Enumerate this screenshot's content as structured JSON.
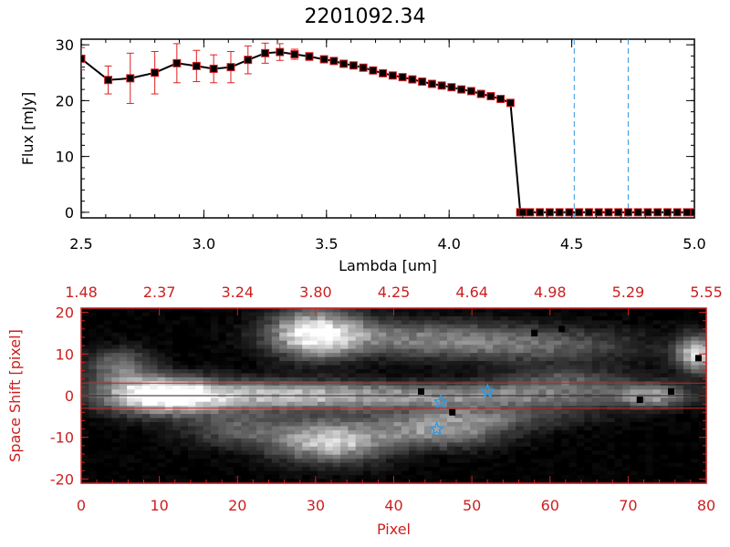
{
  "colors": {
    "axis_top": "#000000",
    "axis_bottom": "#cc2020",
    "marker": "#000000",
    "error_bar": "#dd2020",
    "line": "#000000",
    "vline": "#3399dd",
    "star": "#3399dd",
    "hline": "#cc2020"
  },
  "chart_data": [
    {
      "type": "line",
      "title": "2201092.34",
      "xlabel": "Lambda [um]",
      "ylabel": "Flux [mJy]",
      "xlim": [
        2.5,
        5.0
      ],
      "ylim": [
        -1,
        31
      ],
      "xticks": [
        2.5,
        3.0,
        3.5,
        4.0,
        4.5,
        5.0
      ],
      "xtick_labels": [
        "2.5",
        "3.0",
        "3.5",
        "4.0",
        "4.5",
        "5.0"
      ],
      "yticks": [
        0,
        10,
        20,
        30
      ],
      "ytick_labels": [
        "0",
        "10",
        "20",
        "30"
      ],
      "vertical_lines": [
        4.51,
        4.73
      ],
      "series": [
        {
          "x": [
            2.5,
            2.61,
            2.7,
            2.8,
            2.89,
            2.97,
            3.04,
            3.11,
            3.18,
            3.25,
            3.31,
            3.37,
            3.43,
            3.49,
            3.53,
            3.57,
            3.61,
            3.65,
            3.69,
            3.73,
            3.77,
            3.81,
            3.85,
            3.89,
            3.93,
            3.97,
            4.01,
            4.05,
            4.09,
            4.13,
            4.17,
            4.21,
            4.25,
            4.29,
            4.3,
            4.33,
            4.37,
            4.41,
            4.45,
            4.49,
            4.53,
            4.57,
            4.61,
            4.65,
            4.69,
            4.73,
            4.77,
            4.81,
            4.85,
            4.89,
            4.93,
            4.97,
            5.0
          ],
          "y": [
            27.5,
            23.7,
            24.0,
            25.0,
            26.7,
            26.2,
            25.7,
            26.0,
            27.3,
            28.5,
            28.7,
            28.3,
            27.9,
            27.4,
            27.1,
            26.6,
            26.3,
            25.9,
            25.4,
            24.9,
            24.5,
            24.2,
            23.8,
            23.4,
            23.0,
            22.7,
            22.4,
            22.0,
            21.7,
            21.2,
            20.8,
            20.3,
            19.6,
            0.0,
            0.0,
            0.0,
            0.0,
            0.0,
            0.0,
            0.0,
            0.0,
            0.0,
            0.0,
            0.0,
            0.0,
            0.0,
            0.0,
            0.0,
            0.0,
            0.0,
            0.0,
            0.0,
            0.0
          ],
          "err": [
            2.0,
            2.5,
            4.5,
            3.8,
            3.5,
            2.8,
            2.5,
            2.8,
            2.5,
            1.8,
            1.5,
            0.9,
            0.7,
            0.6,
            0.5,
            0.5,
            0.5,
            0.5,
            0.5,
            0.5,
            0.5,
            0.5,
            0.5,
            0.5,
            0.5,
            0.5,
            0.5,
            0.5,
            0.5,
            0.5,
            0.5,
            0.5,
            0.5,
            0,
            0,
            0,
            0,
            0,
            0,
            0,
            0,
            0,
            0,
            0,
            0,
            0,
            0,
            0,
            0,
            0,
            0,
            0,
            0
          ]
        }
      ]
    },
    {
      "type": "heatmap",
      "xlabel": "Pixel",
      "ylabel": "Space Shift [pixel]",
      "xlim": [
        0,
        80
      ],
      "ylim": [
        -21,
        21
      ],
      "xticks": [
        0,
        10,
        20,
        30,
        40,
        50,
        60,
        70,
        80
      ],
      "yticks": [
        -20,
        -10,
        0,
        10,
        20
      ],
      "top_ticks": [
        0,
        10,
        20,
        30,
        40,
        50,
        60,
        70,
        80
      ],
      "top_tick_labels": [
        "1.48",
        "2.37",
        "3.24",
        "3.80",
        "4.25",
        "4.64",
        "4.98",
        "5.29",
        "5.55"
      ],
      "hlines": [
        3,
        -3
      ],
      "center_line": 0,
      "blobs": [
        {
          "x": 10,
          "y": 0,
          "sx": 5,
          "sy": 3,
          "v": 1.0
        },
        {
          "x": 22,
          "y": 0,
          "sx": 10,
          "sy": 2.5,
          "v": 0.55
        },
        {
          "x": 40,
          "y": 0,
          "sx": 14,
          "sy": 2.2,
          "v": 0.4
        },
        {
          "x": 60,
          "y": 0,
          "sx": 14,
          "sy": 2,
          "v": 0.3
        },
        {
          "x": 73,
          "y": 0,
          "sx": 3,
          "sy": 2,
          "v": 0.45
        },
        {
          "x": 30,
          "y": 15,
          "sx": 4,
          "sy": 4,
          "v": 0.9
        },
        {
          "x": 42,
          "y": 14,
          "sx": 10,
          "sy": 3,
          "v": 0.4
        },
        {
          "x": 58,
          "y": 12,
          "sx": 10,
          "sy": 3,
          "v": 0.35
        },
        {
          "x": 32,
          "y": -11,
          "sx": 5,
          "sy": 3.5,
          "v": 0.8
        },
        {
          "x": 46,
          "y": -8,
          "sx": 6,
          "sy": 3,
          "v": 0.6
        },
        {
          "x": 5,
          "y": 7,
          "sx": 3,
          "sy": 3,
          "v": 0.45
        },
        {
          "x": 20,
          "y": -8,
          "sx": 5,
          "sy": 3,
          "v": 0.35
        },
        {
          "x": 79,
          "y": 10,
          "sx": 2,
          "sy": 3,
          "v": 0.85
        },
        {
          "x": 62,
          "y": 4,
          "sx": 6,
          "sy": 2,
          "v": 0.3
        },
        {
          "x": 55,
          "y": -5,
          "sx": 8,
          "sy": 2,
          "v": 0.25
        }
      ],
      "dark_pixels": [
        [
          43.5,
          1
        ],
        [
          47.5,
          -4
        ],
        [
          58,
          15
        ],
        [
          61.5,
          16
        ],
        [
          71.5,
          -1
        ],
        [
          75.5,
          1
        ],
        [
          79,
          9
        ]
      ],
      "stars": [
        [
          46,
          -1.5
        ],
        [
          45.5,
          -8
        ],
        [
          52,
          1
        ]
      ]
    }
  ]
}
